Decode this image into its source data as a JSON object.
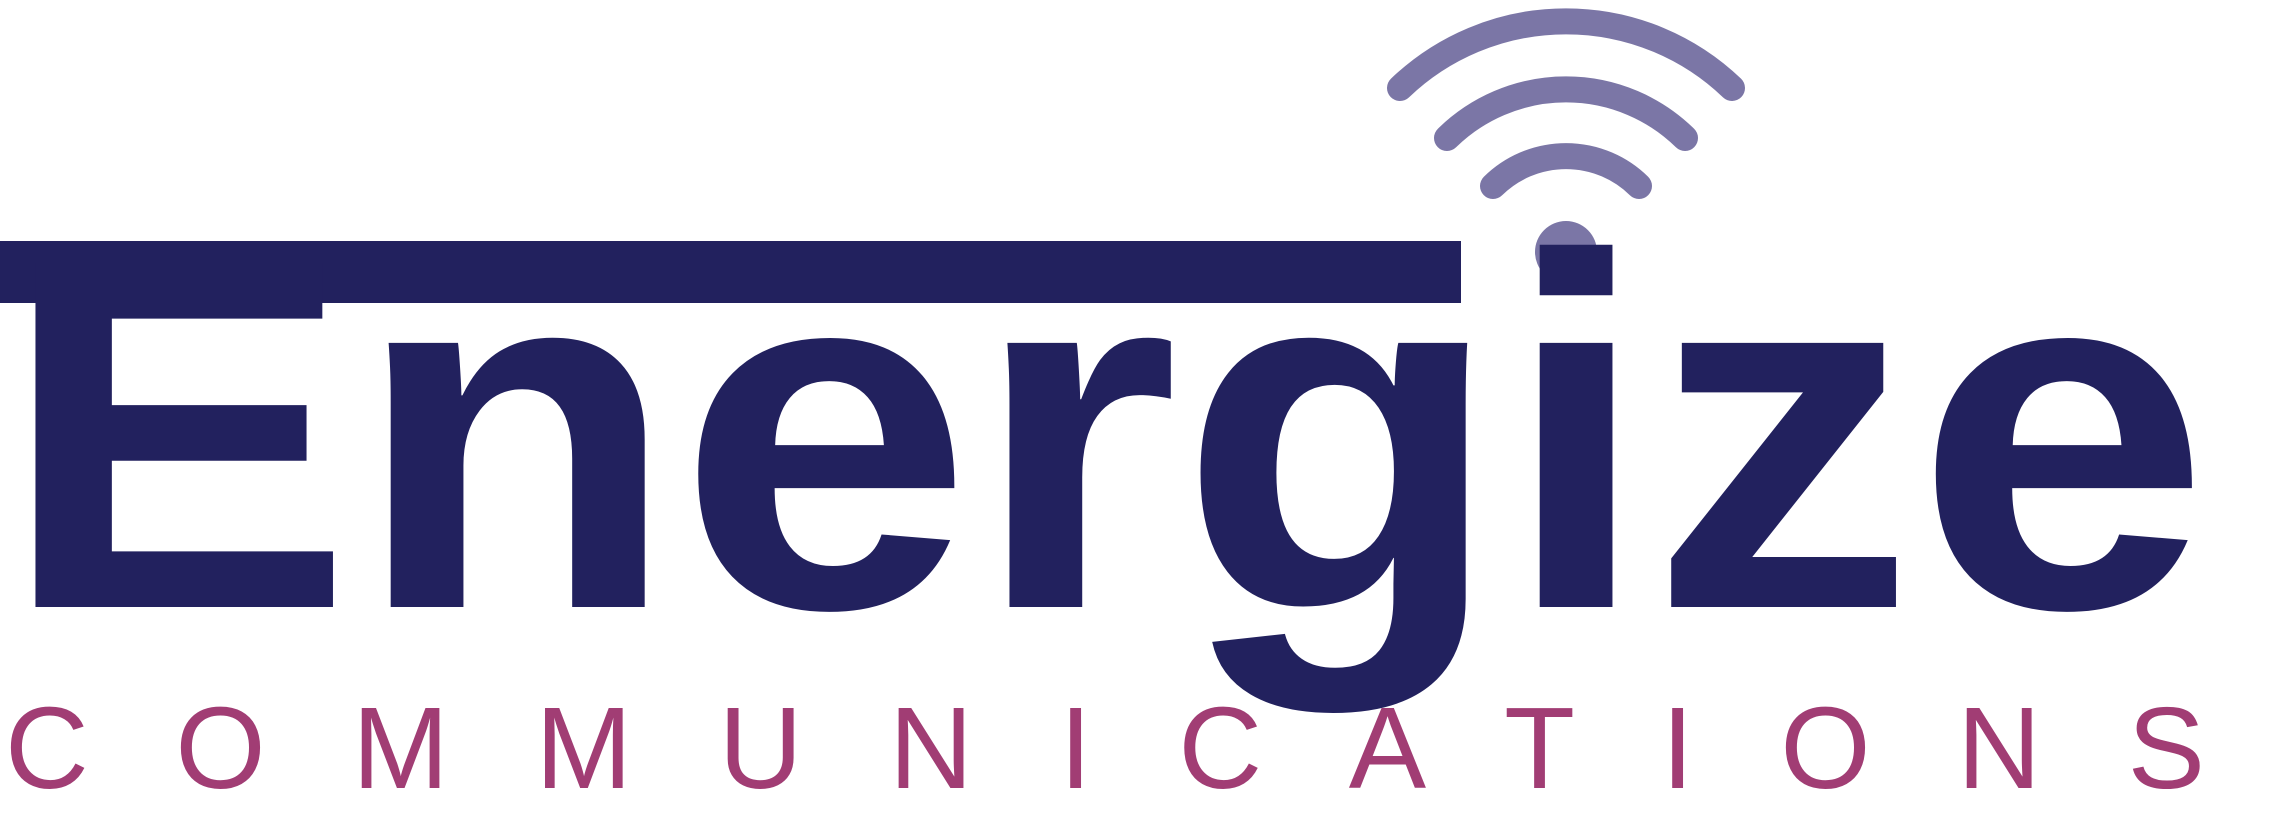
{
  "logo": {
    "wordmark": "Energize",
    "tagline": "COMMUNICATIONS",
    "colors": {
      "wordmark": "#22215e",
      "tagline": "#a13d74",
      "signal": "#7b76a6",
      "background": "#ffffff"
    },
    "icon": "wifi-signal-icon"
  }
}
